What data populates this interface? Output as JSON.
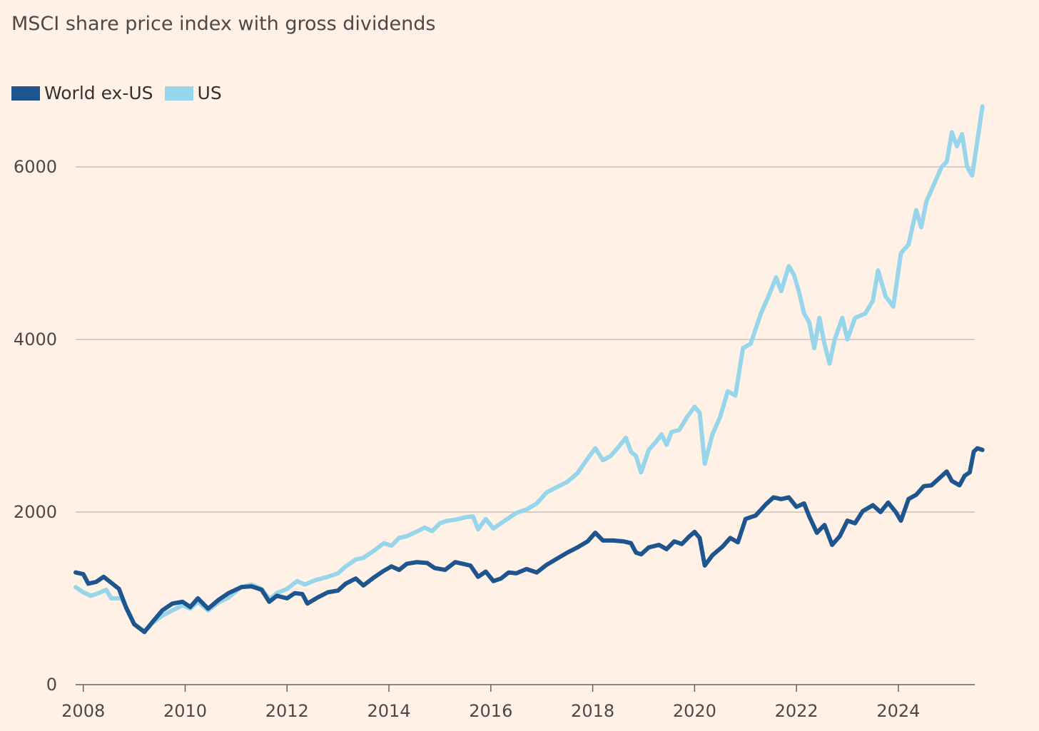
{
  "chart_data": {
    "type": "line",
    "subtitle": "MSCI share price index with gross dividends",
    "xlabel": "",
    "ylabel": "",
    "xlim": [
      2007.85,
      2025.5
    ],
    "ylim": [
      0,
      7000
    ],
    "y_ticks": [
      {
        "value": 0,
        "label": "0"
      },
      {
        "value": 2000,
        "label": "2000"
      },
      {
        "value": 4000,
        "label": "4000"
      },
      {
        "value": 6000,
        "label": "6000"
      }
    ],
    "x_ticks": [
      {
        "value": 2008,
        "label": "2008"
      },
      {
        "value": 2010,
        "label": "2010"
      },
      {
        "value": 2012,
        "label": "2012"
      },
      {
        "value": 2014,
        "label": "2014"
      },
      {
        "value": 2016,
        "label": "2016"
      },
      {
        "value": 2018,
        "label": "2018"
      },
      {
        "value": 2020,
        "label": "2020"
      },
      {
        "value": 2022,
        "label": "2022"
      },
      {
        "value": 2024,
        "label": "2024"
      }
    ],
    "grid": true,
    "legend_position": "top-left",
    "series": [
      {
        "name": "World ex-US",
        "color": "#1e558f",
        "points": [
          [
            2007.85,
            1300
          ],
          [
            2008.0,
            1280
          ],
          [
            2008.1,
            1170
          ],
          [
            2008.25,
            1190
          ],
          [
            2008.4,
            1250
          ],
          [
            2008.55,
            1180
          ],
          [
            2008.7,
            1110
          ],
          [
            2008.85,
            880
          ],
          [
            2009.0,
            700
          ],
          [
            2009.2,
            610
          ],
          [
            2009.35,
            720
          ],
          [
            2009.55,
            860
          ],
          [
            2009.75,
            940
          ],
          [
            2009.95,
            960
          ],
          [
            2010.1,
            900
          ],
          [
            2010.25,
            1000
          ],
          [
            2010.45,
            880
          ],
          [
            2010.65,
            980
          ],
          [
            2010.85,
            1060
          ],
          [
            2011.1,
            1130
          ],
          [
            2011.3,
            1140
          ],
          [
            2011.5,
            1100
          ],
          [
            2011.65,
            960
          ],
          [
            2011.8,
            1030
          ],
          [
            2012.0,
            1000
          ],
          [
            2012.15,
            1060
          ],
          [
            2012.3,
            1050
          ],
          [
            2012.4,
            940
          ],
          [
            2012.6,
            1010
          ],
          [
            2012.8,
            1070
          ],
          [
            2013.0,
            1090
          ],
          [
            2013.15,
            1170
          ],
          [
            2013.35,
            1230
          ],
          [
            2013.5,
            1150
          ],
          [
            2013.7,
            1240
          ],
          [
            2013.9,
            1320
          ],
          [
            2014.05,
            1370
          ],
          [
            2014.2,
            1330
          ],
          [
            2014.35,
            1400
          ],
          [
            2014.55,
            1420
          ],
          [
            2014.75,
            1410
          ],
          [
            2014.9,
            1350
          ],
          [
            2015.1,
            1330
          ],
          [
            2015.3,
            1420
          ],
          [
            2015.45,
            1400
          ],
          [
            2015.6,
            1380
          ],
          [
            2015.75,
            1250
          ],
          [
            2015.9,
            1310
          ],
          [
            2016.05,
            1200
          ],
          [
            2016.2,
            1230
          ],
          [
            2016.35,
            1300
          ],
          [
            2016.5,
            1290
          ],
          [
            2016.7,
            1340
          ],
          [
            2016.9,
            1300
          ],
          [
            2017.1,
            1390
          ],
          [
            2017.3,
            1460
          ],
          [
            2017.5,
            1530
          ],
          [
            2017.7,
            1590
          ],
          [
            2017.9,
            1660
          ],
          [
            2018.05,
            1760
          ],
          [
            2018.2,
            1670
          ],
          [
            2018.4,
            1670
          ],
          [
            2018.6,
            1660
          ],
          [
            2018.75,
            1640
          ],
          [
            2018.85,
            1530
          ],
          [
            2018.95,
            1510
          ],
          [
            2019.1,
            1590
          ],
          [
            2019.3,
            1620
          ],
          [
            2019.45,
            1570
          ],
          [
            2019.6,
            1660
          ],
          [
            2019.75,
            1630
          ],
          [
            2019.9,
            1720
          ],
          [
            2020.0,
            1770
          ],
          [
            2020.1,
            1700
          ],
          [
            2020.2,
            1380
          ],
          [
            2020.35,
            1500
          ],
          [
            2020.55,
            1600
          ],
          [
            2020.7,
            1700
          ],
          [
            2020.85,
            1650
          ],
          [
            2021.0,
            1920
          ],
          [
            2021.2,
            1960
          ],
          [
            2021.4,
            2090
          ],
          [
            2021.55,
            2170
          ],
          [
            2021.7,
            2150
          ],
          [
            2021.85,
            2170
          ],
          [
            2022.0,
            2060
          ],
          [
            2022.15,
            2100
          ],
          [
            2022.25,
            1950
          ],
          [
            2022.4,
            1760
          ],
          [
            2022.55,
            1850
          ],
          [
            2022.7,
            1620
          ],
          [
            2022.85,
            1720
          ],
          [
            2023.0,
            1900
          ],
          [
            2023.15,
            1870
          ],
          [
            2023.3,
            2010
          ],
          [
            2023.5,
            2080
          ],
          [
            2023.65,
            2000
          ],
          [
            2023.8,
            2110
          ],
          [
            2023.95,
            2000
          ],
          [
            2024.05,
            1900
          ],
          [
            2024.2,
            2150
          ],
          [
            2024.35,
            2200
          ],
          [
            2024.5,
            2300
          ],
          [
            2024.65,
            2310
          ],
          [
            2024.8,
            2390
          ],
          [
            2024.95,
            2470
          ],
          [
            2025.05,
            2360
          ],
          [
            2025.2,
            2310
          ],
          [
            2025.3,
            2420
          ],
          [
            2025.4,
            2460
          ],
          [
            2025.48,
            2700
          ],
          [
            2025.55,
            2740
          ],
          [
            2025.65,
            2720
          ]
        ]
      },
      {
        "name": "US",
        "color": "#96d5ea",
        "points": [
          [
            2007.85,
            1130
          ],
          [
            2008.0,
            1070
          ],
          [
            2008.15,
            1030
          ],
          [
            2008.3,
            1060
          ],
          [
            2008.45,
            1100
          ],
          [
            2008.55,
            1000
          ],
          [
            2008.75,
            1000
          ],
          [
            2008.9,
            830
          ],
          [
            2009.0,
            700
          ],
          [
            2009.2,
            620
          ],
          [
            2009.35,
            710
          ],
          [
            2009.55,
            800
          ],
          [
            2009.75,
            860
          ],
          [
            2009.95,
            920
          ],
          [
            2010.1,
            880
          ],
          [
            2010.25,
            960
          ],
          [
            2010.45,
            860
          ],
          [
            2010.65,
            950
          ],
          [
            2010.85,
            1010
          ],
          [
            2011.1,
            1130
          ],
          [
            2011.3,
            1160
          ],
          [
            2011.5,
            1110
          ],
          [
            2011.65,
            990
          ],
          [
            2011.8,
            1060
          ],
          [
            2012.0,
            1110
          ],
          [
            2012.2,
            1200
          ],
          [
            2012.35,
            1160
          ],
          [
            2012.55,
            1210
          ],
          [
            2012.8,
            1250
          ],
          [
            2013.0,
            1290
          ],
          [
            2013.15,
            1370
          ],
          [
            2013.35,
            1450
          ],
          [
            2013.5,
            1470
          ],
          [
            2013.7,
            1550
          ],
          [
            2013.9,
            1640
          ],
          [
            2014.05,
            1610
          ],
          [
            2014.2,
            1700
          ],
          [
            2014.35,
            1720
          ],
          [
            2014.5,
            1760
          ],
          [
            2014.7,
            1820
          ],
          [
            2014.85,
            1780
          ],
          [
            2015.0,
            1870
          ],
          [
            2015.15,
            1900
          ],
          [
            2015.3,
            1910
          ],
          [
            2015.5,
            1940
          ],
          [
            2015.65,
            1950
          ],
          [
            2015.75,
            1800
          ],
          [
            2015.9,
            1920
          ],
          [
            2016.05,
            1810
          ],
          [
            2016.2,
            1870
          ],
          [
            2016.35,
            1930
          ],
          [
            2016.5,
            1990
          ],
          [
            2016.7,
            2030
          ],
          [
            2016.9,
            2100
          ],
          [
            2017.1,
            2230
          ],
          [
            2017.3,
            2290
          ],
          [
            2017.5,
            2350
          ],
          [
            2017.7,
            2450
          ],
          [
            2017.9,
            2620
          ],
          [
            2018.05,
            2740
          ],
          [
            2018.2,
            2600
          ],
          [
            2018.35,
            2650
          ],
          [
            2018.5,
            2750
          ],
          [
            2018.65,
            2860
          ],
          [
            2018.75,
            2700
          ],
          [
            2018.85,
            2650
          ],
          [
            2018.95,
            2460
          ],
          [
            2019.1,
            2720
          ],
          [
            2019.25,
            2820
          ],
          [
            2019.35,
            2900
          ],
          [
            2019.45,
            2780
          ],
          [
            2019.55,
            2930
          ],
          [
            2019.7,
            2950
          ],
          [
            2019.85,
            3100
          ],
          [
            2020.0,
            3220
          ],
          [
            2020.1,
            3150
          ],
          [
            2020.2,
            2560
          ],
          [
            2020.35,
            2900
          ],
          [
            2020.5,
            3100
          ],
          [
            2020.65,
            3400
          ],
          [
            2020.8,
            3350
          ],
          [
            2020.95,
            3900
          ],
          [
            2021.1,
            3950
          ],
          [
            2021.3,
            4300
          ],
          [
            2021.45,
            4500
          ],
          [
            2021.6,
            4720
          ],
          [
            2021.7,
            4560
          ],
          [
            2021.85,
            4850
          ],
          [
            2021.95,
            4750
          ],
          [
            2022.05,
            4550
          ],
          [
            2022.15,
            4300
          ],
          [
            2022.25,
            4200
          ],
          [
            2022.35,
            3900
          ],
          [
            2022.45,
            4250
          ],
          [
            2022.55,
            3950
          ],
          [
            2022.65,
            3720
          ],
          [
            2022.75,
            4000
          ],
          [
            2022.9,
            4250
          ],
          [
            2023.0,
            4000
          ],
          [
            2023.15,
            4250
          ],
          [
            2023.35,
            4300
          ],
          [
            2023.5,
            4450
          ],
          [
            2023.6,
            4800
          ],
          [
            2023.75,
            4500
          ],
          [
            2023.9,
            4380
          ],
          [
            2024.05,
            5000
          ],
          [
            2024.2,
            5100
          ],
          [
            2024.35,
            5500
          ],
          [
            2024.45,
            5300
          ],
          [
            2024.55,
            5600
          ],
          [
            2024.7,
            5800
          ],
          [
            2024.85,
            6000
          ],
          [
            2024.95,
            6060
          ],
          [
            2025.05,
            6400
          ],
          [
            2025.15,
            6240
          ],
          [
            2025.25,
            6380
          ],
          [
            2025.35,
            6000
          ],
          [
            2025.45,
            5900
          ],
          [
            2025.55,
            6300
          ],
          [
            2025.65,
            6700
          ]
        ]
      }
    ]
  }
}
